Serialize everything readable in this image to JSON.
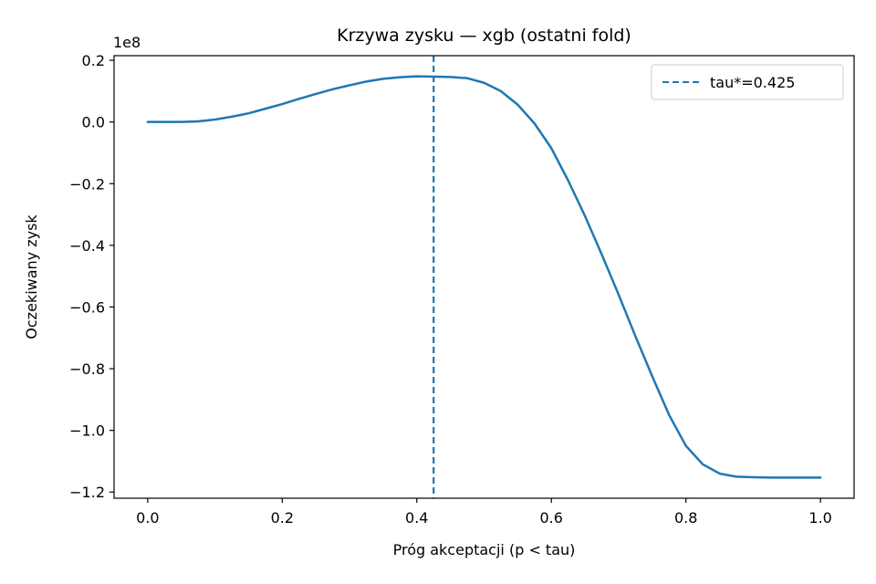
{
  "chart_data": {
    "type": "line",
    "title": "Krzywa zysku — xgb (ostatni fold)",
    "xlabel": "Próg akceptacji (p < tau)",
    "ylabel": "Oczekiwany zysk",
    "y_scale_label": "1e8",
    "y_scale": 100000000,
    "xlim": [
      -0.05,
      1.05
    ],
    "ylim": [
      -1.22,
      0.215
    ],
    "x_ticks": [
      0.0,
      0.2,
      0.4,
      0.6,
      0.8,
      1.0
    ],
    "x_tick_labels": [
      "0.0",
      "0.2",
      "0.4",
      "0.6",
      "0.8",
      "1.0"
    ],
    "y_ticks": [
      0.2,
      0.0,
      -0.2,
      -0.4,
      -0.6,
      -0.8,
      -1.0,
      -1.2
    ],
    "y_tick_labels": [
      "0.2",
      "0.0",
      "−0.2",
      "−0.4",
      "−0.6",
      "−0.8",
      "−1.0",
      "−1.2"
    ],
    "grid": false,
    "legend_position": "top-right",
    "colors": {
      "line": "#1f77b4",
      "vline": "#1f77b4"
    },
    "series": [
      {
        "x": [
          0.0,
          0.05,
          0.075,
          0.1,
          0.125,
          0.15,
          0.175,
          0.2,
          0.225,
          0.25,
          0.275,
          0.3,
          0.325,
          0.35,
          0.375,
          0.4,
          0.425,
          0.45,
          0.475,
          0.5,
          0.525,
          0.55,
          0.575,
          0.6,
          0.625,
          0.65,
          0.675,
          0.7,
          0.725,
          0.75,
          0.775,
          0.8,
          0.825,
          0.85,
          0.875,
          0.9,
          0.925,
          0.95,
          1.0
        ],
        "y": [
          0.0,
          0.0,
          0.002,
          0.008,
          0.017,
          0.028,
          0.043,
          0.058,
          0.075,
          0.091,
          0.106,
          0.119,
          0.131,
          0.14,
          0.145,
          0.148,
          0.147,
          0.146,
          0.142,
          0.127,
          0.1,
          0.056,
          -0.005,
          -0.085,
          -0.19,
          -0.305,
          -0.43,
          -0.56,
          -0.695,
          -0.825,
          -0.95,
          -1.05,
          -1.11,
          -1.14,
          -1.15,
          -1.152,
          -1.153,
          -1.153,
          -1.153
        ]
      }
    ],
    "vline": {
      "x": 0.425,
      "label": "tau*=0.425",
      "style": "dashed"
    }
  }
}
